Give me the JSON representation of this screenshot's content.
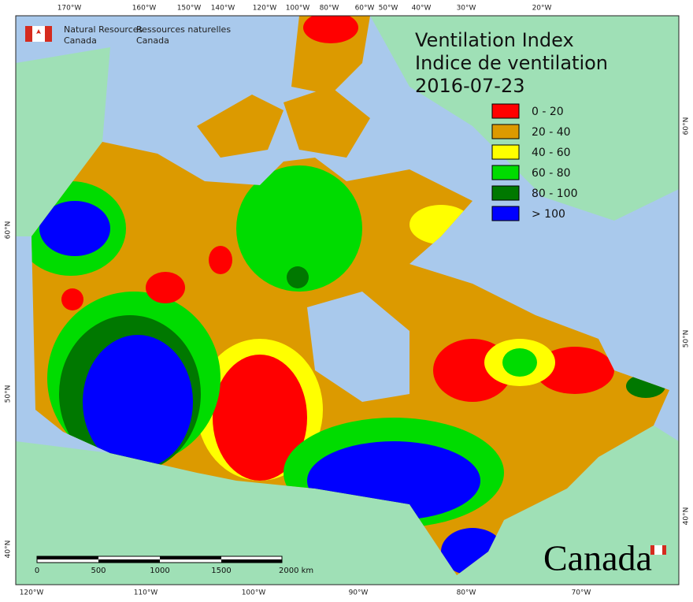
{
  "header": {
    "org_en": [
      "Natural Resources",
      "Canada"
    ],
    "org_fr": [
      "Ressources naturelles",
      "Canada"
    ]
  },
  "title": [
    "Ventilation Index",
    "Indice de ventilation",
    "2016-07-23"
  ],
  "legend": [
    {
      "label": "0 - 20",
      "color": "#ff0000"
    },
    {
      "label": "20 - 40",
      "color": "#dc9a00"
    },
    {
      "label": "40 - 60",
      "color": "#ffff00"
    },
    {
      "label": "60 - 80",
      "color": "#00dc00"
    },
    {
      "label": "80 - 100",
      "color": "#007800"
    },
    {
      "label": "> 100",
      "color": "#0000ff"
    }
  ],
  "top_longitudes": [
    "170°W",
    "160°W",
    "150°W",
    "140°W",
    "120°W",
    "100°W",
    "80°W",
    "60°W",
    "50°W",
    "40°W",
    "30°W",
    "20°W"
  ],
  "bottom_longitudes": [
    "120°W",
    "110°W",
    "100°W",
    "90°W",
    "80°W",
    "70°W"
  ],
  "left_latitudes": [
    "60°N",
    "50°N",
    "40°N"
  ],
  "right_latitudes": [
    "60°N",
    "50°N",
    "40°N"
  ],
  "scale_bar": [
    "0",
    "500",
    "1000",
    "1500",
    "2000 km"
  ],
  "wordmark": "Canada"
}
